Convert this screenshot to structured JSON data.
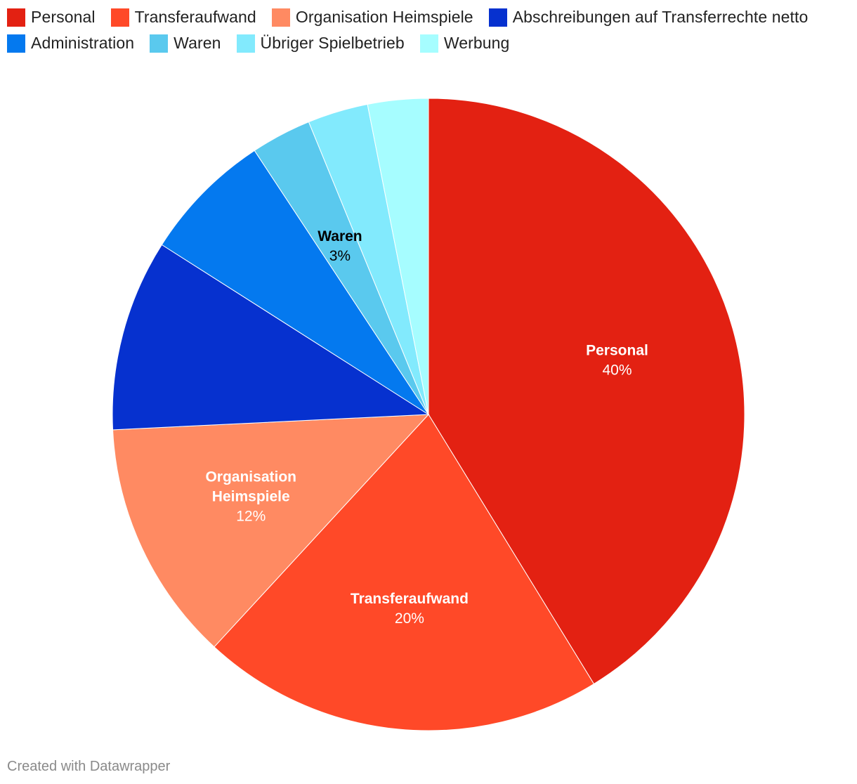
{
  "chart_data": {
    "type": "pie",
    "title": "",
    "start": "12 o'clock, clockwise",
    "slices": [
      {
        "name": "Personal",
        "value": 40,
        "color": "#e32112",
        "show_label": true,
        "label_color": "#ffffff",
        "value_label": "40%"
      },
      {
        "name": "Transferaufwand",
        "value": 20,
        "color": "#ff4928",
        "show_label": true,
        "label_color": "#ffffff",
        "value_label": "20%"
      },
      {
        "name": "Organisation Heimspiele",
        "value": 12,
        "color": "#ff8a62",
        "show_label": true,
        "label_color": "#ffffff",
        "value_label": "12%"
      },
      {
        "name": "Abschreibungen auf Transferrechte netto",
        "value": 9.5,
        "color": "#0631cf",
        "show_label": false
      },
      {
        "name": "Administration",
        "value": 6.5,
        "color": "#0479ef",
        "show_label": false
      },
      {
        "name": "Waren",
        "value": 3,
        "color": "#5ac9ee",
        "show_label": true,
        "label_color": "#000000",
        "value_label": "3%"
      },
      {
        "name": "Übriger Spielbetrieb",
        "value": 3,
        "color": "#82eafd",
        "show_label": false
      },
      {
        "name": "Werbung",
        "value": 3,
        "color": "#a6fdff",
        "show_label": false
      }
    ],
    "legend": {
      "position": "top-left",
      "items": [
        {
          "label": "Personal",
          "color": "#e32112"
        },
        {
          "label": "Transferaufwand",
          "color": "#ff4928"
        },
        {
          "label": "Organisation Heimspiele",
          "color": "#ff8a62"
        },
        {
          "label": "Abschreibungen auf Transferrechte netto",
          "color": "#0631cf"
        },
        {
          "label": "Administration",
          "color": "#0479ef"
        },
        {
          "label": "Waren",
          "color": "#5ac9ee"
        },
        {
          "label": "Übriger Spielbetrieb",
          "color": "#82eafd"
        },
        {
          "label": "Werbung",
          "color": "#a6fdff"
        }
      ]
    }
  },
  "footer": {
    "credit": "Created with Datawrapper"
  }
}
